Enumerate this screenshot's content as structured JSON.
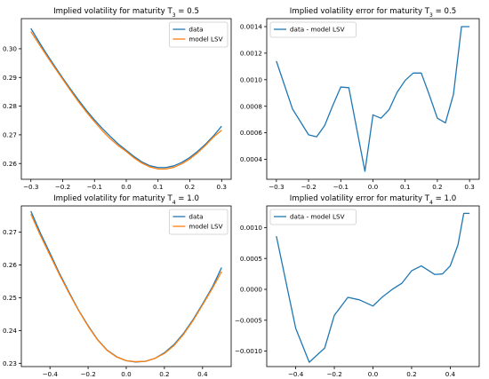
{
  "chart_data": [
    {
      "type": "line",
      "title": "Implied volatility for maturity T$_3$ = 0.5",
      "title_parts": {
        "pre": "Implied volatility for maturity T",
        "sub": "3",
        "post": " = 0.5"
      },
      "xlabel": "",
      "ylabel": "",
      "xlim": [
        -0.33,
        0.33
      ],
      "ylim": [
        0.2545,
        0.3105
      ],
      "xticks": [
        -0.3,
        -0.2,
        -0.1,
        0.0,
        0.1,
        0.2,
        0.3
      ],
      "xtick_labels": [
        "−0.3",
        "−0.2",
        "−0.1",
        "0.0",
        "0.1",
        "0.2",
        "0.3"
      ],
      "yticks": [
        0.26,
        0.27,
        0.28,
        0.29,
        0.3
      ],
      "ytick_labels": [
        "0.26",
        "0.27",
        "0.28",
        "0.29",
        "0.30"
      ],
      "legend": "top-right",
      "grid": false,
      "series": [
        {
          "name": "data",
          "color": "#1f77b4",
          "x": [
            -0.3,
            -0.275,
            -0.25,
            -0.225,
            -0.2,
            -0.175,
            -0.15,
            -0.125,
            -0.1,
            -0.075,
            -0.05,
            -0.025,
            0.0,
            0.025,
            0.05,
            0.075,
            0.1,
            0.125,
            0.15,
            0.175,
            0.2,
            0.225,
            0.25,
            0.275,
            0.3
          ],
          "y": [
            0.3071,
            0.3025,
            0.2981,
            0.2939,
            0.2898,
            0.2859,
            0.2821,
            0.2785,
            0.2752,
            0.2722,
            0.2694,
            0.2668,
            0.2646,
            0.2624,
            0.2605,
            0.2592,
            0.2586,
            0.2586,
            0.2592,
            0.2604,
            0.2621,
            0.2643,
            0.2668,
            0.2697,
            0.273
          ]
        },
        {
          "name": "model LSV",
          "color": "#ff7f0e",
          "x": [
            -0.3,
            -0.275,
            -0.25,
            -0.225,
            -0.2,
            -0.175,
            -0.15,
            -0.125,
            -0.1,
            -0.075,
            -0.05,
            -0.025,
            0.0,
            0.025,
            0.05,
            0.075,
            0.1,
            0.125,
            0.15,
            0.175,
            0.2,
            0.225,
            0.25,
            0.275,
            0.3
          ],
          "y": [
            0.306,
            0.3017,
            0.2975,
            0.2934,
            0.2894,
            0.2854,
            0.2815,
            0.2779,
            0.2746,
            0.2714,
            0.2686,
            0.2662,
            0.2642,
            0.2619,
            0.2601,
            0.2588,
            0.2581,
            0.2581,
            0.2587,
            0.2599,
            0.2616,
            0.2638,
            0.2664,
            0.2693,
            0.2716
          ]
        }
      ]
    },
    {
      "type": "line",
      "title": "Implied volatility error for maturity T$_3$ = 0.5",
      "title_parts": {
        "pre": "Implied volatility error for maturity T",
        "sub": "3",
        "post": " = 0.5"
      },
      "xlabel": "",
      "ylabel": "",
      "xlim": [
        -0.33,
        0.33
      ],
      "ylim": [
        0.00025,
        0.00146
      ],
      "xticks": [
        -0.3,
        -0.2,
        -0.1,
        0.0,
        0.1,
        0.2,
        0.3
      ],
      "xtick_labels": [
        "−0.3",
        "−0.2",
        "−0.1",
        "0.0",
        "0.1",
        "0.2",
        "0.3"
      ],
      "yticks": [
        0.0004,
        0.0006,
        0.0008,
        0.001,
        0.0012,
        0.0014
      ],
      "ytick_labels": [
        "0.0004",
        "0.0006",
        "0.0008",
        "0.0010",
        "0.0012",
        "0.0014"
      ],
      "legend": "top-left",
      "grid": false,
      "series": [
        {
          "name": "data - model LSV",
          "color": "#1f77b4",
          "x": [
            -0.3,
            -0.25,
            -0.2,
            -0.175,
            -0.15,
            -0.125,
            -0.1,
            -0.075,
            -0.05,
            -0.025,
            0.0,
            0.025,
            0.05,
            0.075,
            0.1,
            0.125,
            0.15,
            0.175,
            0.2,
            0.225,
            0.25,
            0.275,
            0.3
          ],
          "y": [
            0.00114,
            0.00078,
            0.000585,
            0.00057,
            0.000655,
            0.000805,
            0.000945,
            0.00094,
            0.000625,
            0.00031,
            0.000735,
            0.00071,
            0.000775,
            0.000905,
            0.000995,
            0.00105,
            0.00105,
            0.000885,
            0.00071,
            0.000675,
            0.00089,
            0.0014,
            0.0014
          ]
        }
      ]
    },
    {
      "type": "line",
      "title": "Implied volatility for maturity T$_4$ = 1.0",
      "title_parts": {
        "pre": "Implied volatility for maturity T",
        "sub": "4",
        "post": " = 1.0"
      },
      "xlabel": "",
      "ylabel": "",
      "xlim": [
        -0.55,
        0.55
      ],
      "ylim": [
        0.229,
        0.278
      ],
      "xticks": [
        -0.4,
        -0.2,
        0.0,
        0.2,
        0.4
      ],
      "xtick_labels": [
        "−0.4",
        "−0.2",
        "0.0",
        "0.2",
        "0.4"
      ],
      "yticks": [
        0.23,
        0.24,
        0.25,
        0.26,
        0.27
      ],
      "ytick_labels": [
        "0.23",
        "0.24",
        "0.25",
        "0.26",
        "0.27"
      ],
      "legend": "top-right",
      "grid": false,
      "series": [
        {
          "name": "data",
          "color": "#1f77b4",
          "x": [
            -0.5,
            -0.45,
            -0.4,
            -0.35,
            -0.3,
            -0.25,
            -0.2,
            -0.15,
            -0.1,
            -0.05,
            0.0,
            0.05,
            0.1,
            0.15,
            0.2,
            0.25,
            0.3,
            0.35,
            0.4,
            0.45,
            0.5
          ],
          "y": [
            0.2764,
            0.2697,
            0.2636,
            0.2574,
            0.2517,
            0.2462,
            0.2415,
            0.2372,
            0.234,
            0.232,
            0.2308,
            0.2304,
            0.2306,
            0.2315,
            0.2332,
            0.2357,
            0.2391,
            0.2433,
            0.2481,
            0.2531,
            0.2592
          ]
        },
        {
          "name": "model LSV",
          "color": "#ff7f0e",
          "x": [
            -0.5,
            -0.45,
            -0.4,
            -0.35,
            -0.3,
            -0.25,
            -0.2,
            -0.15,
            -0.1,
            -0.05,
            0.0,
            0.05,
            0.1,
            0.15,
            0.2,
            0.25,
            0.3,
            0.35,
            0.4,
            0.45,
            0.5
          ],
          "y": [
            0.2755,
            0.269,
            0.263,
            0.257,
            0.2514,
            0.2461,
            0.2413,
            0.2371,
            0.2339,
            0.2319,
            0.2308,
            0.2305,
            0.2306,
            0.2315,
            0.233,
            0.2354,
            0.2388,
            0.243,
            0.2478,
            0.2527,
            0.258
          ]
        }
      ]
    },
    {
      "type": "line",
      "title": "Implied volatility error for maturity T$_4$ = 1.0",
      "title_parts": {
        "pre": "Implied volatility error for maturity T",
        "sub": "4",
        "post": " = 1.0"
      },
      "xlabel": "",
      "ylabel": "",
      "xlim": [
        -0.55,
        0.55
      ],
      "ylim": [
        -0.00125,
        0.00135
      ],
      "xticks": [
        -0.4,
        -0.2,
        0.0,
        0.2,
        0.4
      ],
      "xtick_labels": [
        "−0.4",
        "−0.2",
        "0.0",
        "0.2",
        "0.4"
      ],
      "yticks": [
        -0.001,
        -0.0005,
        0.0,
        0.0005,
        0.001
      ],
      "ytick_labels": [
        "−0.0010",
        "−0.0005",
        "0.0000",
        "0.0005",
        "0.0010"
      ],
      "legend": "top-left",
      "grid": false,
      "series": [
        {
          "name": "data - model LSV",
          "color": "#1f77b4",
          "x": [
            -0.5,
            -0.4,
            -0.33,
            -0.25,
            -0.2,
            -0.13,
            -0.07,
            0.0,
            0.05,
            0.1,
            0.15,
            0.2,
            0.25,
            0.28,
            0.32,
            0.36,
            0.4,
            0.44,
            0.47,
            0.5
          ],
          "y": [
            0.00086,
            -0.00063,
            -0.00118,
            -0.00095,
            -0.00042,
            -0.00013,
            -0.00017,
            -0.00027,
            -0.00012,
            0.0,
            0.0001,
            0.0003,
            0.00038,
            0.00032,
            0.00024,
            0.00025,
            0.00038,
            0.00072,
            0.00123,
            0.00123
          ]
        }
      ]
    }
  ]
}
